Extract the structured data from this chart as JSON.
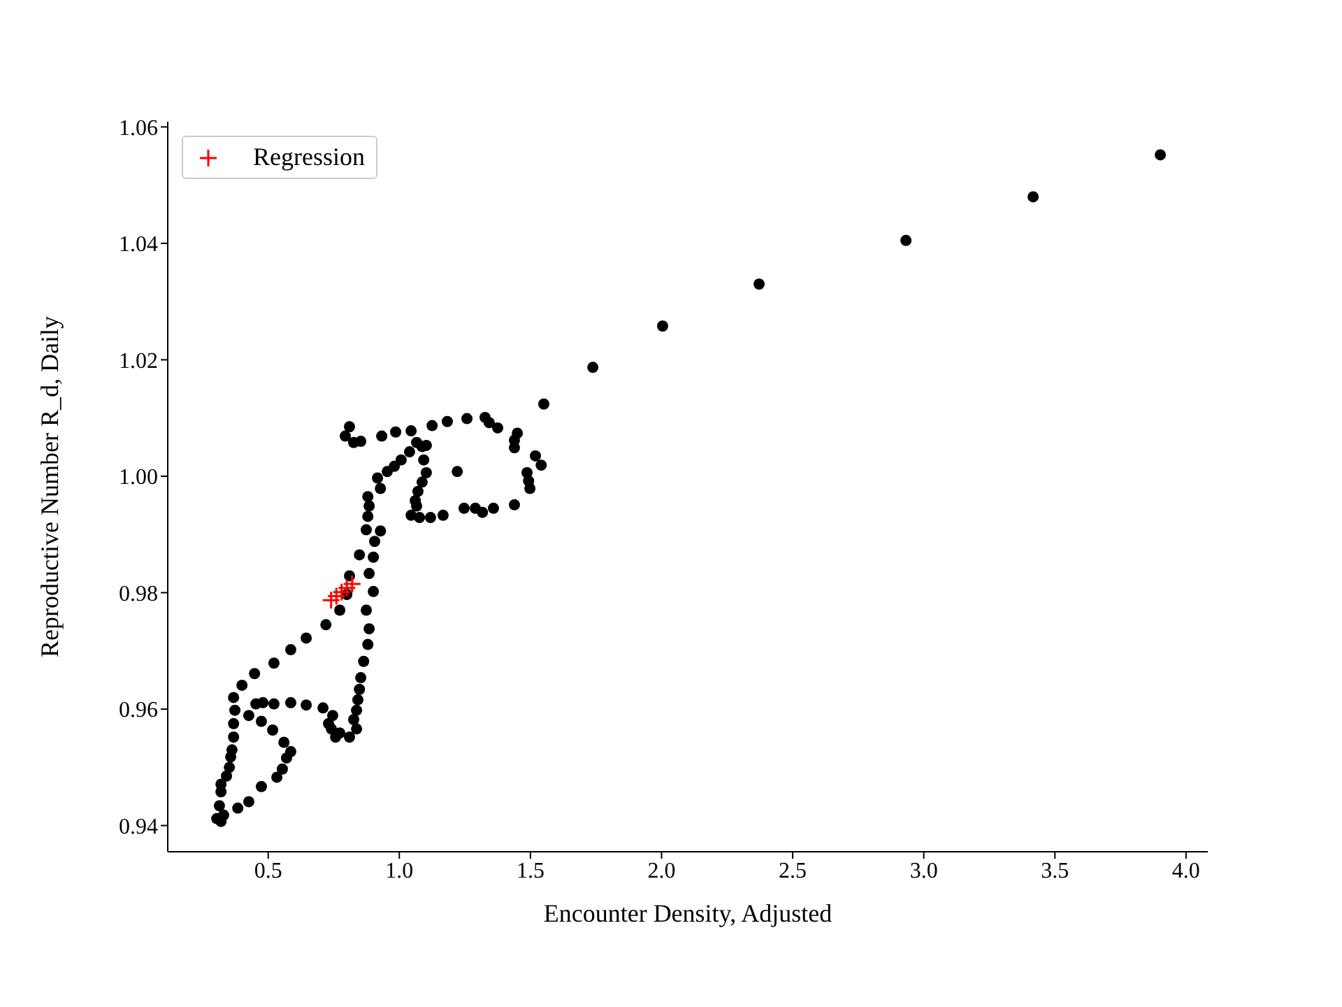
{
  "chart_data": {
    "type": "scatter",
    "xlabel": "Encounter Density, Adjusted",
    "ylabel": "Reproductive Number R_d, Daily",
    "legend": "top left",
    "xlim": [
      0.117,
      4.083
    ],
    "ylim": [
      0.9355,
      1.0609
    ],
    "xticks": [
      0.5,
      {
        "value": 1,
        "label": "1.0"
      },
      1.5,
      {
        "value": 2,
        "label": "2.0"
      },
      2.5,
      {
        "value": 3,
        "label": "3.0"
      },
      3.5,
      {
        "value": 4,
        "label": "4.0"
      }
    ],
    "yticks": [
      0.94,
      0.96,
      0.98,
      {
        "value": 1,
        "label": "1.00"
      },
      1.02,
      1.04,
      1.06
    ],
    "series": [
      {
        "color": "#000000",
        "marker": "circle",
        "x": [
          3.902,
          3.417,
          2.932,
          2.372,
          2.004,
          1.738,
          1.551,
          0.81,
          0.794,
          0.826,
          0.853,
          0.933,
          0.986,
          1.045,
          1.125,
          1.183,
          1.258,
          1.327,
          1.343,
          1.375,
          1.45,
          1.439,
          1.439,
          1.519,
          1.541,
          1.487,
          1.493,
          1.498,
          1.439,
          1.359,
          1.317,
          1.29,
          1.247,
          1.221,
          1.167,
          1.119,
          1.077,
          1.045,
          1.066,
          1.061,
          1.071,
          1.087,
          1.103,
          1.093,
          1.087,
          1.103,
          1.066,
          1.039,
          1.007,
          0.981,
          0.954,
          0.917,
          0.928,
          0.88,
          0.885,
          0.88,
          0.874,
          0.928,
          0.906,
          0.848,
          0.901,
          0.885,
          0.81,
          0.901,
          0.8,
          0.773,
          0.874,
          0.72,
          0.885,
          0.645,
          0.88,
          0.586,
          0.864,
          0.522,
          0.853,
          0.448,
          0.4,
          0.848,
          0.368,
          0.842,
          0.373,
          0.453,
          0.48,
          0.522,
          0.586,
          0.645,
          0.709,
          0.746,
          0.837,
          0.826,
          0.73,
          0.837,
          0.773,
          0.741,
          0.757,
          0.81,
          0.426,
          0.368,
          0.474,
          0.368,
          0.517,
          0.362,
          0.56,
          0.586,
          0.357,
          0.57,
          0.352,
          0.554,
          0.341,
          0.533,
          0.32,
          0.474,
          0.32,
          0.426,
          0.314,
          0.384,
          0.33,
          0.304,
          0.32
        ],
        "values": [
          1.0552,
          1.048,
          1.0405,
          1.033,
          1.0258,
          1.0187,
          1.0124,
          1.0085,
          1.0069,
          1.0058,
          1.006,
          1.0069,
          1.0076,
          1.0078,
          1.0087,
          1.0094,
          1.0099,
          1.0101,
          1.0092,
          1.0083,
          1.0074,
          1.0062,
          1.0049,
          1.0035,
          1.0019,
          1.0006,
          0.9992,
          0.9979,
          0.9951,
          0.9945,
          0.9938,
          0.9945,
          0.9945,
          1.0008,
          0.9933,
          0.9929,
          0.9929,
          0.9933,
          0.9949,
          0.9958,
          0.9974,
          0.999,
          1.0006,
          1.0028,
          1.0051,
          1.0053,
          1.0058,
          1.0042,
          1.0028,
          1.0017,
          1.0008,
          0.9997,
          0.9979,
          0.9965,
          0.9949,
          0.9931,
          0.9908,
          0.9906,
          0.9888,
          0.9865,
          0.9861,
          0.9833,
          0.9829,
          0.9802,
          0.9797,
          0.977,
          0.977,
          0.9745,
          0.9738,
          0.9722,
          0.9711,
          0.9702,
          0.9682,
          0.9679,
          0.9654,
          0.9661,
          0.9641,
          0.9634,
          0.962,
          0.9616,
          0.9598,
          0.9609,
          0.9611,
          0.9609,
          0.9611,
          0.9607,
          0.9602,
          0.9589,
          0.9598,
          0.9582,
          0.9575,
          0.9566,
          0.9559,
          0.9566,
          0.9552,
          0.9552,
          0.9589,
          0.9575,
          0.9579,
          0.9552,
          0.9564,
          0.953,
          0.9543,
          0.9527,
          0.9518,
          0.9516,
          0.95,
          0.9497,
          0.9485,
          0.9483,
          0.9471,
          0.9467,
          0.9458,
          0.9441,
          0.9434,
          0.943,
          0.9418,
          0.9412,
          0.9407
        ]
      },
      {
        "name": "Regression",
        "color": "#ff0000",
        "marker": "cross",
        "x": [
          0.74,
          0.76,
          0.78,
          0.8,
          0.82
        ],
        "values": [
          0.9787,
          0.9794,
          0.9801,
          0.9808,
          0.9815
        ]
      }
    ]
  }
}
